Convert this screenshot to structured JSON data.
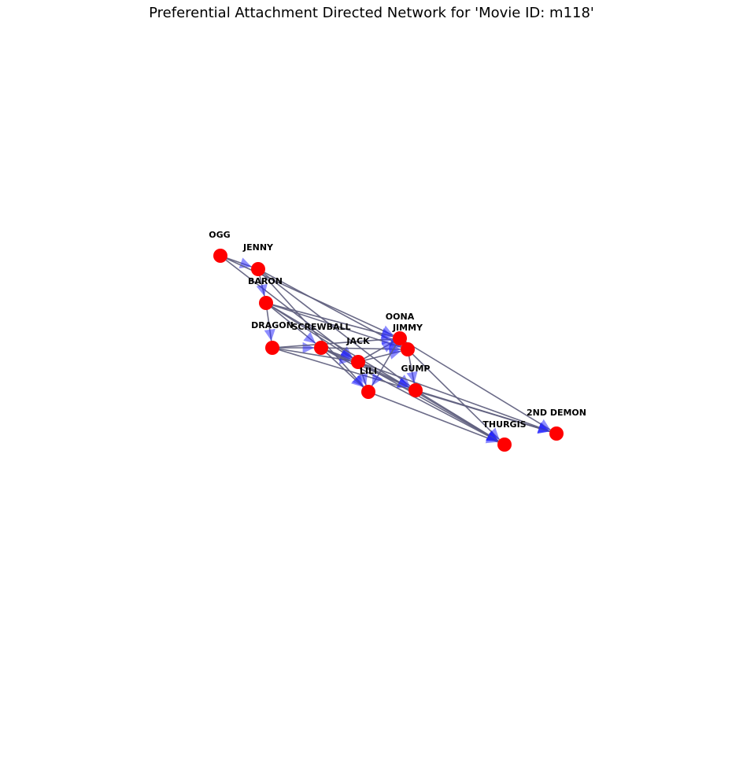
{
  "title": "Preferential Attachment Directed Network for 'Movie ID: m118'",
  "colors": {
    "node": "#ff0000",
    "edge": "#5f5f7e",
    "arrowhead": "#1f1fff",
    "label": "#000000",
    "background": "#ffffff"
  },
  "nodes": [
    {
      "id": "OGG",
      "label": "OGG"
    },
    {
      "id": "JENNY",
      "label": "JENNY"
    },
    {
      "id": "BARON",
      "label": "BARON"
    },
    {
      "id": "DRAGON",
      "label": "DRAGON"
    },
    {
      "id": "SCREWBALL",
      "label": "SCREWBALL"
    },
    {
      "id": "JACK",
      "label": "JACK"
    },
    {
      "id": "OONA",
      "label": "OONA"
    },
    {
      "id": "JIMMY",
      "label": "JIMMY"
    },
    {
      "id": "LILI",
      "label": "LILI"
    },
    {
      "id": "GUMP",
      "label": "GUMP"
    },
    {
      "id": "THURGIS",
      "label": "THURGIS"
    },
    {
      "id": "2ND DEMON",
      "label": "2ND DEMON"
    }
  ],
  "edges": [
    [
      "OGG",
      "JENNY"
    ],
    [
      "OGG",
      "JACK"
    ],
    [
      "OGG",
      "OONA"
    ],
    [
      "JENNY",
      "BARON"
    ],
    [
      "JENNY",
      "JIMMY"
    ],
    [
      "JENNY",
      "LILI"
    ],
    [
      "JENNY",
      "GUMP"
    ],
    [
      "BARON",
      "DRAGON"
    ],
    [
      "BARON",
      "SCREWBALL"
    ],
    [
      "BARON",
      "JACK"
    ],
    [
      "BARON",
      "OONA"
    ],
    [
      "BARON",
      "JIMMY"
    ],
    [
      "BARON",
      "THURGIS"
    ],
    [
      "DRAGON",
      "SCREWBALL"
    ],
    [
      "DRAGON",
      "JACK"
    ],
    [
      "DRAGON",
      "OONA"
    ],
    [
      "DRAGON",
      "2ND DEMON"
    ],
    [
      "SCREWBALL",
      "JACK"
    ],
    [
      "SCREWBALL",
      "JIMMY"
    ],
    [
      "SCREWBALL",
      "LILI"
    ],
    [
      "SCREWBALL",
      "GUMP"
    ],
    [
      "SCREWBALL",
      "THURGIS"
    ],
    [
      "JACK",
      "OONA"
    ],
    [
      "JACK",
      "JIMMY"
    ],
    [
      "JACK",
      "LILI"
    ],
    [
      "JACK",
      "GUMP"
    ],
    [
      "JACK",
      "THURGIS"
    ],
    [
      "JACK",
      "2ND DEMON"
    ],
    [
      "OONA",
      "LILI"
    ],
    [
      "OONA",
      "2ND DEMON"
    ],
    [
      "JIMMY",
      "GUMP"
    ],
    [
      "JIMMY",
      "THURGIS"
    ],
    [
      "LILI",
      "THURGIS"
    ],
    [
      "GUMP",
      "THURGIS"
    ],
    [
      "GUMP",
      "2ND DEMON"
    ]
  ]
}
